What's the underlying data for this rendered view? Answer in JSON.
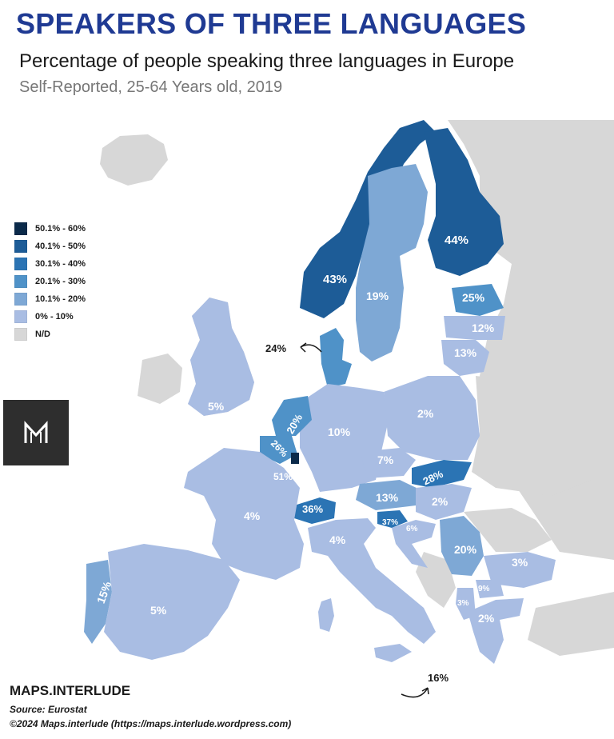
{
  "header": {
    "title": "SPEAKERS OF THREE LANGUAGES",
    "subtitle": "Percentage of people speaking three languages in Europe",
    "subtitle2": "Self-Reported, 25-64 Years old, 2019"
  },
  "legend": {
    "items": [
      {
        "label": "50.1% - 60%",
        "color": "#0b2a4a"
      },
      {
        "label": "40.1% - 50%",
        "color": "#1d5c97"
      },
      {
        "label": "30.1% - 40%",
        "color": "#2b74b4"
      },
      {
        "label": "20.1% - 30%",
        "color": "#4f92c8"
      },
      {
        "label": "10.1% - 20%",
        "color": "#7ea8d5"
      },
      {
        "label": "0% - 10%",
        "color": "#a9bde3"
      },
      {
        "label": "N/D",
        "color": "#d7d7d7"
      }
    ]
  },
  "map": {
    "nd_color": "#d7d7d7",
    "values": {
      "norway": "43%",
      "finland": "44%",
      "sweden": "19%",
      "estonia": "25%",
      "latvia": "12%",
      "lithuania": "13%",
      "denmark": "24%",
      "ireland": "5%",
      "netherlands": "20%",
      "belgium": "26%",
      "luxembourg": "51%",
      "germany": "10%",
      "poland": "2%",
      "czechia": "7%",
      "slovakia": "28%",
      "austria": "13%",
      "hungary": "2%",
      "switzerland": "36%",
      "france": "4%",
      "italy": "4%",
      "slovenia": "37%",
      "croatia": "6%",
      "serbia": "20%",
      "bulgaria": "3%",
      "north_macedonia": "9%",
      "albania": "3%",
      "greece": "2%",
      "portugal": "15%",
      "spain": "5%",
      "malta": "16%"
    }
  },
  "footer": {
    "brand": "MAPS.INTERLUDE",
    "source": "Source: Eurostat",
    "copyright": "©2024 Maps.interlude (https://maps.interlude.wordpress.com)"
  }
}
